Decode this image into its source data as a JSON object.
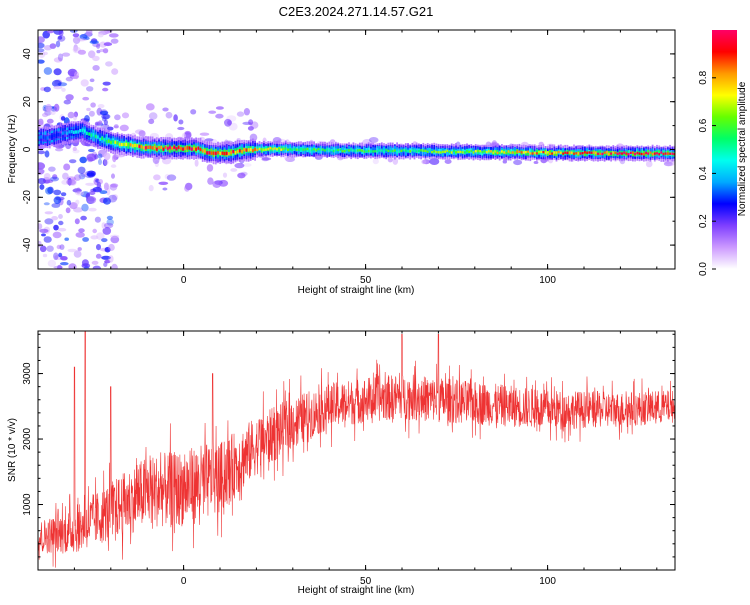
{
  "title": "C2E3.2024.271.14.57.G21",
  "chart_data": [
    {
      "type": "heatmap",
      "title": "C2E3.2024.271.14.57.G21",
      "xlabel": "Height of straight line (km)",
      "ylabel": "Frequency (Hz)",
      "xlim": [
        -40,
        135
      ],
      "ylim": [
        -50,
        50
      ],
      "xticks": [
        0,
        50,
        100
      ],
      "yticks": [
        -40,
        -20,
        0,
        20,
        40
      ],
      "colorbar": {
        "label": "Normalized spectral amplitude",
        "range": [
          0,
          1
        ],
        "ticks": [
          "0.0",
          "0.2",
          "0.4",
          "0.6",
          "0.8"
        ],
        "colors": [
          "#ffffff",
          "#cc99ff",
          "#7f3fff",
          "#0000ff",
          "#00aaff",
          "#00ffee",
          "#00ff66",
          "#66ff00",
          "#ffff00",
          "#ff9900",
          "#ff0000",
          "#ff0066"
        ]
      },
      "ridge": {
        "description_values": "peak frequency vs height",
        "x": [
          -38,
          -32,
          -28,
          -24,
          -20,
          -16,
          -12,
          -8,
          -4,
          0,
          4,
          6,
          8,
          12,
          16,
          20,
          25,
          30,
          40,
          50,
          60,
          70,
          80,
          90,
          100,
          110,
          120,
          135
        ],
        "y": [
          5,
          7,
          8,
          5,
          3,
          2,
          1,
          0.5,
          0.5,
          0.5,
          0.3,
          -1,
          -1.5,
          -1.5,
          -0.5,
          0,
          0.3,
          0,
          -0.3,
          -0.5,
          -0.6,
          -0.8,
          -1,
          -1.2,
          -1.4,
          -1.5,
          -1.6,
          -1.6
        ],
        "amplitude": [
          0.3,
          0.35,
          0.45,
          0.5,
          0.6,
          0.7,
          0.85,
          0.9,
          0.95,
          0.95,
          0.9,
          0.85,
          0.85,
          0.9,
          0.8,
          0.75,
          0.7,
          0.6,
          0.55,
          0.55,
          0.55,
          0.6,
          0.65,
          0.75,
          0.8,
          0.85,
          0.9,
          0.95
        ]
      }
    },
    {
      "type": "line",
      "xlabel": "Height of straight line (km)",
      "ylabel": "SNR (10 * v/v)",
      "xlim": [
        -40,
        135
      ],
      "ylim": [
        0,
        3650
      ],
      "xticks": [
        0,
        50,
        100
      ],
      "yticks": [
        1000,
        2000,
        3000
      ],
      "color": "#ee3333",
      "trend": {
        "x": [
          -40,
          -30,
          -20,
          -10,
          0,
          10,
          20,
          30,
          40,
          50,
          60,
          70,
          80,
          90,
          100,
          110,
          120,
          135
        ],
        "y": [
          500,
          600,
          900,
          1200,
          1250,
          1400,
          1900,
          2250,
          2500,
          2600,
          2650,
          2600,
          2550,
          2500,
          2450,
          2450,
          2450,
          2500
        ]
      },
      "spread": {
        "x": [
          -40,
          -25,
          -10,
          5,
          20,
          40,
          70,
          100,
          135
        ],
        "y": [
          250,
          400,
          550,
          600,
          450,
          350,
          350,
          300,
          250
        ]
      },
      "spikes": [
        {
          "x": -27,
          "y": 3650
        },
        {
          "x": -30,
          "y": 3100
        },
        {
          "x": -20,
          "y": 2800
        },
        {
          "x": 8,
          "y": 3000
        },
        {
          "x": 60,
          "y": 3600
        },
        {
          "x": 70,
          "y": 3600
        }
      ]
    }
  ]
}
